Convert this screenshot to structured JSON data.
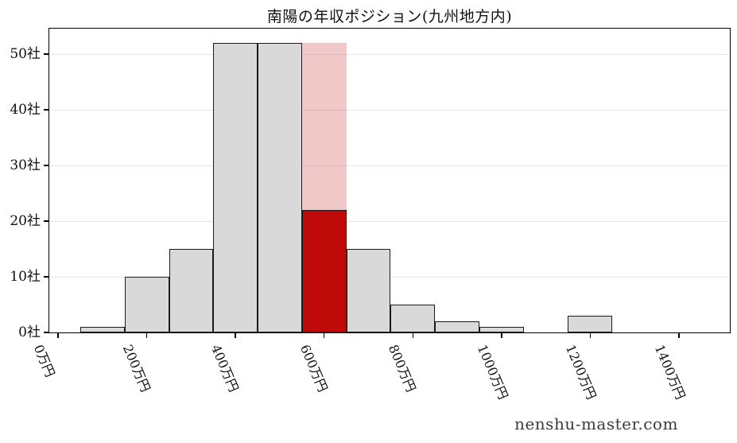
{
  "chart_data": {
    "type": "bar",
    "variant": "histogram",
    "title": "南陽の年収ポジション(九州地方内)",
    "watermark": "nenshu-master.com",
    "xlabel": "",
    "ylabel": "",
    "grid": "horizontal",
    "legend": null,
    "xlim": [
      -20,
      1515
    ],
    "ylim": [
      0,
      54.6
    ],
    "bin_width": 100,
    "x_ticks": [
      {
        "value": 0,
        "label": "0万円"
      },
      {
        "value": 200,
        "label": "200万円"
      },
      {
        "value": 400,
        "label": "400万円"
      },
      {
        "value": 600,
        "label": "600万円"
      },
      {
        "value": 800,
        "label": "800万円"
      },
      {
        "value": 1000,
        "label": "1000万円"
      },
      {
        "value": 1200,
        "label": "1200万円"
      },
      {
        "value": 1400,
        "label": "1400万円"
      }
    ],
    "y_ticks": [
      {
        "value": 0,
        "label": "0社"
      },
      {
        "value": 10,
        "label": "10社"
      },
      {
        "value": 20,
        "label": "20社"
      },
      {
        "value": 30,
        "label": "30社"
      },
      {
        "value": 40,
        "label": "40社"
      },
      {
        "value": 50,
        "label": "50社"
      }
    ],
    "bins": [
      {
        "center": 100,
        "count": 1
      },
      {
        "center": 200,
        "count": 10
      },
      {
        "center": 300,
        "count": 15
      },
      {
        "center": 400,
        "count": 52
      },
      {
        "center": 500,
        "count": 52
      },
      {
        "center": 600,
        "count": 22,
        "highlight": true
      },
      {
        "center": 700,
        "count": 15
      },
      {
        "center": 800,
        "count": 5
      },
      {
        "center": 900,
        "count": 2
      },
      {
        "center": 1000,
        "count": 1
      },
      {
        "center": 1100,
        "count": 0
      },
      {
        "center": 1200,
        "count": 3
      }
    ],
    "highlight": {
      "center": 600,
      "count": 22,
      "band_count": 52
    },
    "colors": {
      "bar": "#d9d9d9",
      "edge": "#1a1a1a",
      "highlight_bar": "#bf0a0a",
      "highlight_band": "rgba(191,10,10,0.22)",
      "grid": "#e6e6e6",
      "axis": "#000000",
      "text": "#111111",
      "watermark": "#3c3c3c"
    }
  }
}
